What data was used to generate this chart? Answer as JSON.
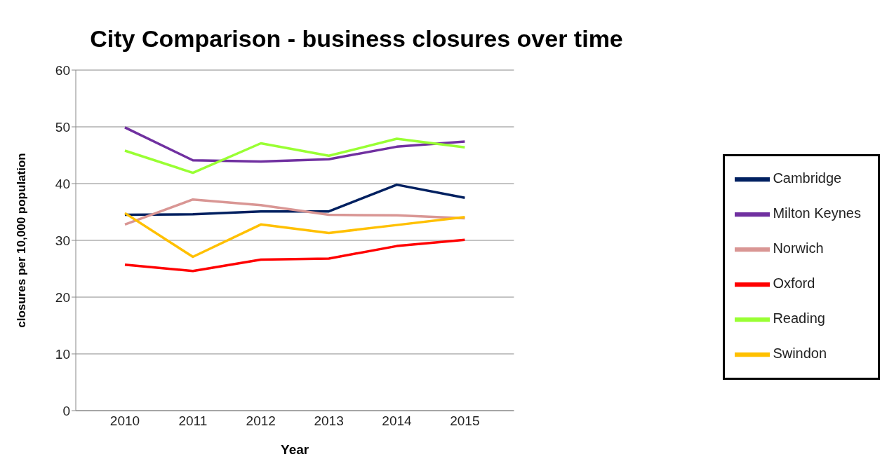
{
  "chart_data": {
    "type": "line",
    "title": "City Comparison - business closures over time",
    "xlabel": "Year",
    "ylabel": "closures per 10,000 population",
    "categories": [
      "2010",
      "2011",
      "2012",
      "2013",
      "2014",
      "2015"
    ],
    "ylim": [
      0,
      60
    ],
    "yticks": [
      0,
      10,
      20,
      30,
      40,
      50,
      60
    ],
    "grid": "y",
    "legend": "right",
    "marker": "none",
    "line_style": "solid",
    "series": [
      {
        "name": "Cambridge",
        "color": "#002060",
        "values": [
          34.5,
          34.6,
          35.1,
          35.1,
          39.8,
          37.5
        ]
      },
      {
        "name": "Milton Keynes",
        "color": "#7030a0",
        "values": [
          49.9,
          44.1,
          43.9,
          44.3,
          46.5,
          47.4
        ]
      },
      {
        "name": "Norwich",
        "color": "#d99694",
        "values": [
          32.8,
          37.2,
          36.2,
          34.5,
          34.4,
          33.9
        ]
      },
      {
        "name": "Oxford",
        "color": "#ff0000",
        "values": [
          25.7,
          24.6,
          26.6,
          26.8,
          29.0,
          30.1
        ]
      },
      {
        "name": "Reading",
        "color": "#99ff33",
        "values": [
          45.8,
          41.9,
          47.1,
          44.9,
          47.9,
          46.4
        ]
      },
      {
        "name": "Swindon",
        "color": "#ffc000",
        "values": [
          34.8,
          27.1,
          32.8,
          31.3,
          32.7,
          34.1
        ]
      }
    ]
  }
}
